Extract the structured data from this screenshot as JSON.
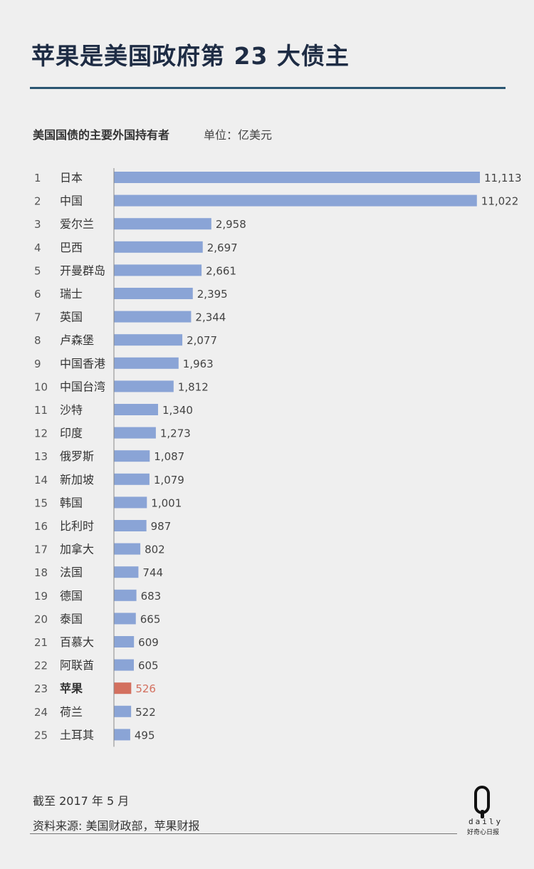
{
  "header": {
    "title": "苹果是美国政府第 23 大债主",
    "subtitle": "美国国债的主要外国持有者",
    "unit": "单位：亿美元"
  },
  "footer": {
    "date": "截至 2017 年 5 月",
    "source": "资料来源: 美国财政部，苹果财报"
  },
  "logo": {
    "letter": "Q",
    "word": "daily",
    "tagline": "好奇心日报"
  },
  "colors": {
    "bar": "#8aa4d6",
    "highlight": "#d3705f",
    "text": "#333333",
    "axis": "#888888"
  },
  "chart_data": {
    "type": "bar",
    "orientation": "horizontal",
    "highlight_category": "苹果",
    "ranks": [
      "1",
      "2",
      "3",
      "4",
      "5",
      "6",
      "7",
      "8",
      "9",
      "10",
      "11",
      "12",
      "13",
      "14",
      "15",
      "16",
      "17",
      "18",
      "19",
      "20",
      "21",
      "22",
      "23",
      "24",
      "25"
    ],
    "categories": [
      "日本",
      "中国",
      "爱尔兰",
      "巴西",
      "开曼群岛",
      "瑞士",
      "英国",
      "卢森堡",
      "中国香港",
      "中国台湾",
      "沙特",
      "印度",
      "俄罗斯",
      "新加坡",
      "韩国",
      "比利时",
      "加拿大",
      "法国",
      "德国",
      "泰国",
      "百慕大",
      "阿联酋",
      "苹果",
      "荷兰",
      "土耳其"
    ],
    "values": [
      11113,
      11022,
      2958,
      2697,
      2661,
      2395,
      2344,
      2077,
      1963,
      1812,
      1340,
      1273,
      1087,
      1079,
      1001,
      987,
      802,
      744,
      683,
      665,
      609,
      605,
      526,
      522,
      495
    ],
    "labels": [
      "11,113",
      "11,022",
      "2,958",
      "2,697",
      "2,661",
      "2,395",
      "2,344",
      "2,077",
      "1,963",
      "1,812",
      "1,340",
      "1,273",
      "1,087",
      "1,079",
      "1,001",
      "987",
      "802",
      "744",
      "683",
      "665",
      "609",
      "605",
      "526",
      "522",
      "495"
    ],
    "xlim": [
      0,
      11113
    ]
  }
}
